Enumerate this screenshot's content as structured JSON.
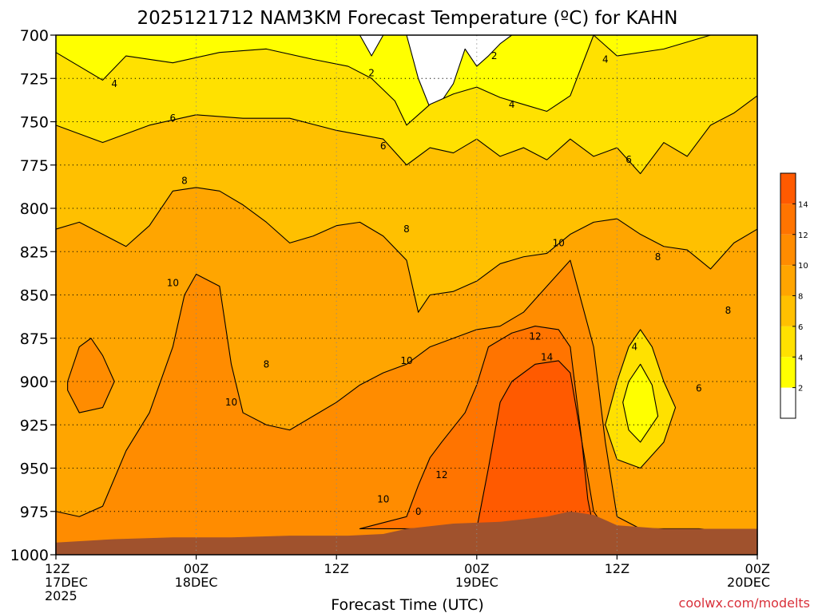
{
  "chart_data": {
    "type": "heatmap",
    "title": "2025121712 NAM3KM Forecast Temperature (ºC) for KAHN",
    "xlabel": "Forecast Time (UTC)",
    "ylabel": "",
    "credit": "coolwx.com/modelts",
    "y_ticks": [
      "700",
      "725",
      "750",
      "775",
      "800",
      "825",
      "850",
      "875",
      "900",
      "925",
      "950",
      "975",
      "1000"
    ],
    "ylim": [
      1000,
      700
    ],
    "x_ticks": [
      {
        "line1": "12Z",
        "line2": "17DEC",
        "line3": "2025"
      },
      {
        "line1": "00Z",
        "line2": "18DEC",
        "line3": ""
      },
      {
        "line1": "12Z",
        "line2": "",
        "line3": ""
      },
      {
        "line1": "00Z",
        "line2": "19DEC",
        "line3": ""
      },
      {
        "line1": "12Z",
        "line2": "",
        "line3": ""
      },
      {
        "line1": "00Z",
        "line2": "20DEC",
        "line3": ""
      }
    ],
    "xlim_hours": [
      0,
      60
    ],
    "grid": true,
    "colorbar": {
      "levels": [
        0,
        2,
        4,
        6,
        8,
        10,
        12,
        14,
        16
      ],
      "labels": [
        "2",
        "4",
        "6",
        "8",
        "10",
        "12",
        "14"
      ],
      "colors": [
        "#ffffff",
        "#ffff00",
        "#ffe100",
        "#ffc000",
        "#ffa500",
        "#ff8c00",
        "#ff7400",
        "#ff5a00"
      ],
      "placement": "right"
    },
    "bands": [
      {
        "level": 2,
        "color": "#ffff00",
        "top": [
          [
            0,
            700
          ],
          [
            26,
            700
          ],
          [
            27,
            712
          ],
          [
            28,
            700
          ],
          [
            30,
            700
          ],
          [
            31,
            725
          ],
          [
            32,
            742
          ],
          [
            33,
            738
          ],
          [
            34,
            728
          ],
          [
            35,
            708
          ],
          [
            36,
            718
          ],
          [
            37,
            712
          ],
          [
            38,
            705
          ],
          [
            39,
            700
          ],
          [
            60,
            700
          ]
        ]
      },
      {
        "level": 4,
        "color": "#ffe100",
        "top": [
          [
            0,
            710
          ],
          [
            4,
            726
          ],
          [
            6,
            712
          ],
          [
            10,
            716
          ],
          [
            14,
            710
          ],
          [
            18,
            708
          ],
          [
            22,
            714
          ],
          [
            25,
            718
          ],
          [
            27,
            725
          ],
          [
            29,
            738
          ],
          [
            30,
            752
          ],
          [
            32,
            740
          ],
          [
            34,
            734
          ],
          [
            36,
            730
          ],
          [
            38,
            736
          ],
          [
            40,
            740
          ],
          [
            42,
            744
          ],
          [
            44,
            735
          ],
          [
            46,
            700
          ],
          [
            48,
            712
          ],
          [
            52,
            708
          ],
          [
            56,
            700
          ],
          [
            60,
            700
          ]
        ]
      },
      {
        "level": 6,
        "color": "#ffc000",
        "top": [
          [
            0,
            752
          ],
          [
            4,
            762
          ],
          [
            8,
            752
          ],
          [
            12,
            746
          ],
          [
            16,
            748
          ],
          [
            20,
            748
          ],
          [
            24,
            755
          ],
          [
            28,
            760
          ],
          [
            30,
            775
          ],
          [
            32,
            765
          ],
          [
            34,
            768
          ],
          [
            36,
            760
          ],
          [
            38,
            770
          ],
          [
            40,
            765
          ],
          [
            42,
            772
          ],
          [
            44,
            760
          ],
          [
            46,
            770
          ],
          [
            48,
            765
          ],
          [
            50,
            780
          ],
          [
            52,
            762
          ],
          [
            54,
            770
          ],
          [
            56,
            752
          ],
          [
            58,
            745
          ],
          [
            60,
            735
          ]
        ]
      },
      {
        "level": 8,
        "color": "#ffa500",
        "top": [
          [
            0,
            812
          ],
          [
            2,
            808
          ],
          [
            4,
            815
          ],
          [
            6,
            822
          ],
          [
            8,
            810
          ],
          [
            10,
            790
          ],
          [
            12,
            788
          ],
          [
            14,
            790
          ],
          [
            16,
            798
          ],
          [
            18,
            808
          ],
          [
            20,
            820
          ],
          [
            22,
            816
          ],
          [
            24,
            810
          ],
          [
            26,
            808
          ],
          [
            28,
            816
          ],
          [
            30,
            830
          ],
          [
            31,
            860
          ],
          [
            32,
            850
          ],
          [
            34,
            848
          ],
          [
            36,
            842
          ],
          [
            38,
            832
          ],
          [
            40,
            828
          ],
          [
            42,
            826
          ],
          [
            44,
            815
          ],
          [
            46,
            808
          ],
          [
            48,
            806
          ],
          [
            50,
            815
          ],
          [
            52,
            822
          ],
          [
            54,
            824
          ],
          [
            56,
            835
          ],
          [
            58,
            820
          ],
          [
            60,
            812
          ]
        ]
      },
      {
        "level": 10,
        "color": "#ff8c00",
        "top": [
          [
            0,
            975
          ],
          [
            2,
            978
          ],
          [
            4,
            972
          ],
          [
            6,
            940
          ],
          [
            8,
            918
          ],
          [
            10,
            880
          ],
          [
            11,
            850
          ],
          [
            12,
            838
          ],
          [
            14,
            845
          ],
          [
            15,
            890
          ],
          [
            16,
            918
          ],
          [
            18,
            925
          ],
          [
            20,
            928
          ],
          [
            22,
            920
          ],
          [
            24,
            912
          ],
          [
            26,
            902
          ],
          [
            28,
            895
          ],
          [
            30,
            890
          ],
          [
            32,
            880
          ],
          [
            34,
            875
          ],
          [
            36,
            870
          ],
          [
            38,
            868
          ],
          [
            40,
            860
          ],
          [
            42,
            845
          ],
          [
            44,
            830
          ],
          [
            46,
            880
          ],
          [
            47,
            935
          ],
          [
            48,
            978
          ],
          [
            50,
            985
          ],
          [
            55,
            985
          ],
          [
            60,
            988
          ]
        ]
      },
      {
        "level": 12,
        "color": "#ff7400",
        "top": [
          [
            26,
            985
          ],
          [
            30,
            978
          ],
          [
            31,
            960
          ],
          [
            32,
            944
          ],
          [
            33,
            935
          ],
          [
            35,
            918
          ],
          [
            36,
            902
          ],
          [
            37,
            880
          ],
          [
            39,
            872
          ],
          [
            41,
            868
          ],
          [
            43,
            870
          ],
          [
            44,
            880
          ],
          [
            45,
            935
          ],
          [
            46,
            975
          ],
          [
            47,
            985
          ],
          [
            26,
            985
          ]
        ]
      },
      {
        "level": 14,
        "color": "#ff5a00",
        "top": [
          [
            36,
            985
          ],
          [
            37,
            950
          ],
          [
            38,
            912
          ],
          [
            39,
            900
          ],
          [
            41,
            890
          ],
          [
            43,
            888
          ],
          [
            44,
            895
          ],
          [
            45,
            935
          ],
          [
            45.5,
            968
          ],
          [
            46,
            985
          ],
          [
            36,
            985
          ]
        ]
      }
    ],
    "inner_blobs": [
      {
        "level": 10,
        "color": "#ff8c00",
        "points": [
          [
            1,
            900
          ],
          [
            2,
            880
          ],
          [
            3,
            875
          ],
          [
            4,
            885
          ],
          [
            5,
            900
          ],
          [
            4,
            915
          ],
          [
            2,
            918
          ],
          [
            1,
            905
          ]
        ]
      },
      {
        "level": 4,
        "color": "#ffe100",
        "points": [
          [
            48,
            900
          ],
          [
            49,
            880
          ],
          [
            50,
            870
          ],
          [
            51,
            880
          ],
          [
            52,
            900
          ],
          [
            53,
            915
          ],
          [
            52,
            935
          ],
          [
            50,
            950
          ],
          [
            48,
            945
          ],
          [
            47,
            925
          ]
        ]
      },
      {
        "level": 2,
        "color": "#ffff00",
        "points": [
          [
            49,
            900
          ],
          [
            50,
            890
          ],
          [
            51,
            902
          ],
          [
            51.5,
            920
          ],
          [
            50,
            935
          ],
          [
            49,
            928
          ],
          [
            48.5,
            912
          ]
        ]
      }
    ],
    "contour_labels": [
      {
        "text": "2",
        "x": 27,
        "y": 722
      },
      {
        "text": "2",
        "x": 37.5,
        "y": 712
      },
      {
        "text": "4",
        "x": 5,
        "y": 728
      },
      {
        "text": "4",
        "x": 39,
        "y": 740
      },
      {
        "text": "4",
        "x": 47,
        "y": 714
      },
      {
        "text": "4",
        "x": 49.5,
        "y": 880
      },
      {
        "text": "6",
        "x": 10,
        "y": 748
      },
      {
        "text": "6",
        "x": 28,
        "y": 764
      },
      {
        "text": "6",
        "x": 49,
        "y": 772
      },
      {
        "text": "6",
        "x": 55,
        "y": 904
      },
      {
        "text": "8",
        "x": 11,
        "y": 784
      },
      {
        "text": "8",
        "x": 30,
        "y": 812
      },
      {
        "text": "8",
        "x": 18,
        "y": 890
      },
      {
        "text": "8",
        "x": 51.5,
        "y": 828
      },
      {
        "text": "8",
        "x": 57.5,
        "y": 859
      },
      {
        "text": "10",
        "x": 10,
        "y": 843
      },
      {
        "text": "10",
        "x": 15,
        "y": 912
      },
      {
        "text": "10",
        "x": 30,
        "y": 888
      },
      {
        "text": "10",
        "x": 28,
        "y": 968
      },
      {
        "text": "10",
        "x": 43,
        "y": 820
      },
      {
        "text": "12",
        "x": 41,
        "y": 874
      },
      {
        "text": "12",
        "x": 33,
        "y": 954
      },
      {
        "text": "14",
        "x": 42,
        "y": 886
      },
      {
        "text": "0",
        "x": 31,
        "y": 975
      }
    ],
    "terrain": {
      "color": "#a0522d",
      "top": [
        [
          0,
          993
        ],
        [
          5,
          991
        ],
        [
          10,
          990
        ],
        [
          15,
          990
        ],
        [
          20,
          989
        ],
        [
          25,
          989
        ],
        [
          28,
          988
        ],
        [
          30,
          985
        ],
        [
          34,
          982
        ],
        [
          38,
          981
        ],
        [
          42,
          978
        ],
        [
          44,
          975
        ],
        [
          46,
          977
        ],
        [
          48,
          983
        ],
        [
          52,
          985
        ],
        [
          56,
          985
        ],
        [
          60,
          985
        ]
      ]
    }
  }
}
